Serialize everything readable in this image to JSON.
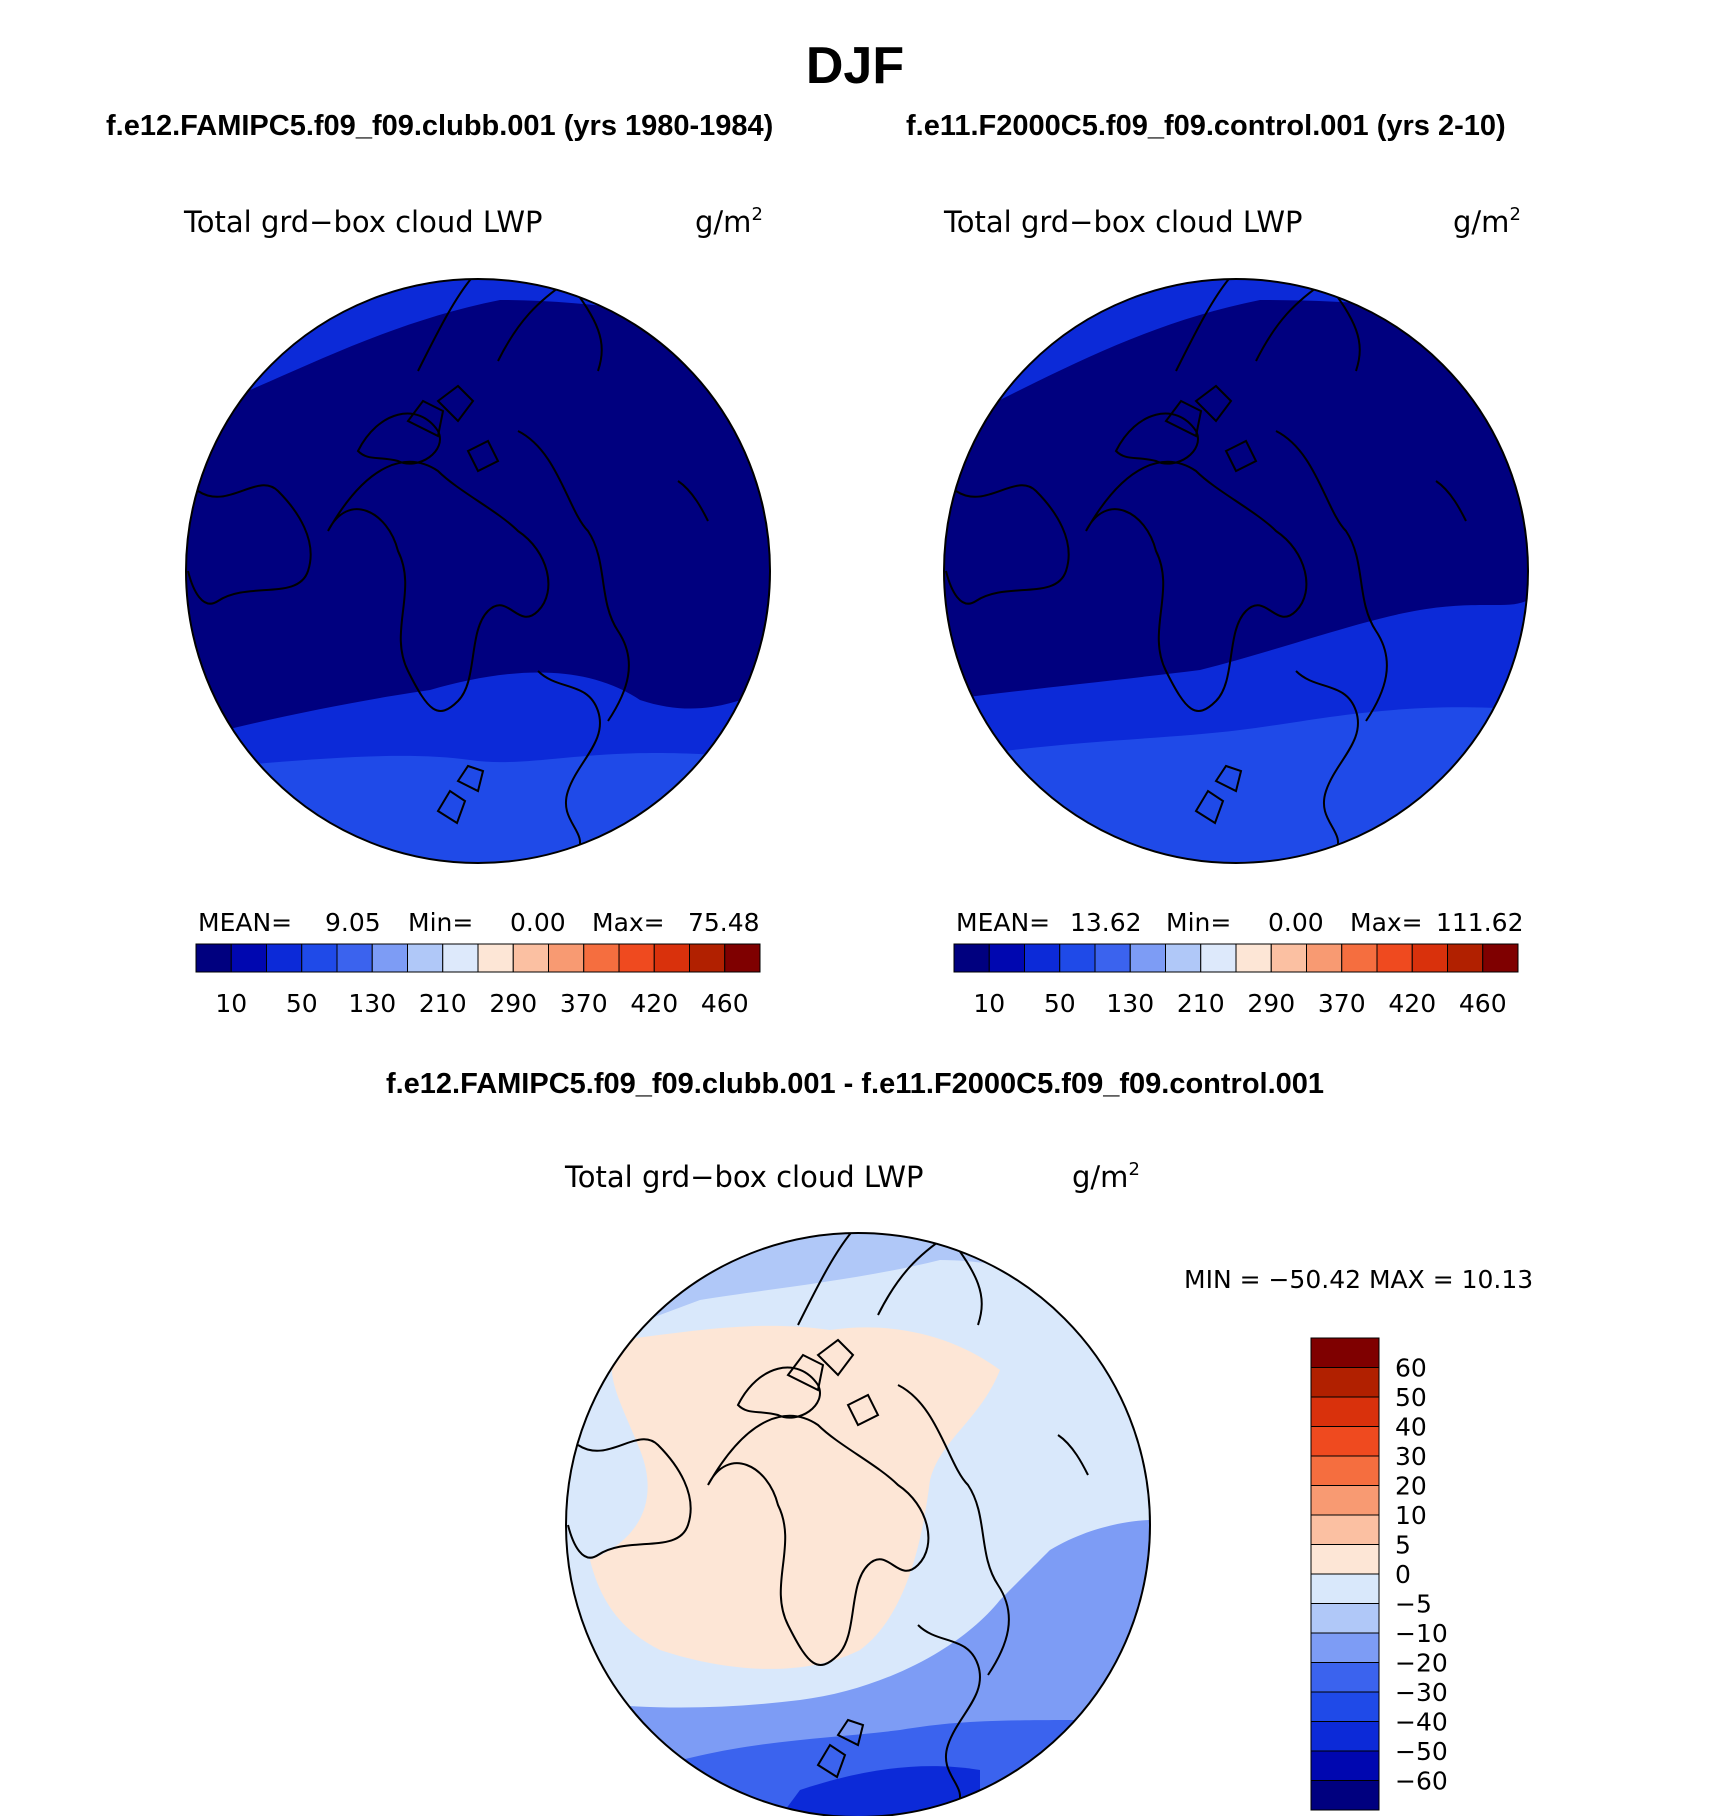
{
  "title": "DJF",
  "panels": {
    "left": {
      "case": "f.e12.FAMIPC5.f09_f09.clubb.001 (yrs 1980-1984)",
      "variable": "Total grd−box cloud LWP",
      "units": "g/m",
      "units_exp": "2",
      "stats": {
        "mean_label": "MEAN=",
        "mean": "9.05",
        "min_label": "Min=",
        "min": "0.00",
        "max_label": "Max=",
        "max": "75.48"
      }
    },
    "right": {
      "case": "f.e11.F2000C5.f09_f09.control.001 (yrs 2-10)",
      "variable": "Total grd−box cloud LWP",
      "units": "g/m",
      "units_exp": "2",
      "stats": {
        "mean_label": "MEAN=",
        "mean": "13.62",
        "min_label": "Min=",
        "min": "0.00",
        "max_label": "Max=",
        "max": "111.62"
      }
    },
    "diff": {
      "case": "f.e12.FAMIPC5.f09_f09.clubb.001 - f.e11.F2000C5.f09_f09.control.001",
      "variable": "Total grd−box cloud LWP",
      "units": "g/m",
      "units_exp": "2",
      "stats_text": "MIN = −50.42 MAX =  10.13"
    }
  },
  "colors": {
    "abs_scale": [
      "#00007f",
      "#0007b0",
      "#0c2ad8",
      "#1f4ae8",
      "#3b63ee",
      "#7d9cf5",
      "#b0c8f8",
      "#dde9fb",
      "#fde6d6",
      "#fbc0a2",
      "#f89a72",
      "#f56e3f",
      "#ef4a1f",
      "#d9310c",
      "#b12000",
      "#7f0000"
    ],
    "diff_scale": [
      "#00007f",
      "#0007b0",
      "#0c2ad8",
      "#1f4ae8",
      "#3b63ee",
      "#7d9cf5",
      "#b0c8f8",
      "#d9e8fb",
      "#fde6d6",
      "#fbc0a2",
      "#f89a72",
      "#f56e3f",
      "#ef4a1f",
      "#d9310c",
      "#b12000",
      "#7f0000"
    ]
  },
  "chart_data": [
    {
      "type": "heatmap",
      "projection": "polar-stereographic",
      "title": "Total grd−box cloud LWP",
      "units": "g/m2",
      "case": "f.e12.FAMIPC5.f09_f09.clubb.001 (yrs 1980-1984)",
      "colorbar_ticks": [
        "10",
        "50",
        "130",
        "210",
        "290",
        "370",
        "420",
        "460"
      ],
      "mean": 9.05,
      "min": 0.0,
      "max": 75.48
    },
    {
      "type": "heatmap",
      "projection": "polar-stereographic",
      "title": "Total grd−box cloud LWP",
      "units": "g/m2",
      "case": "f.e11.F2000C5.f09_f09.control.001 (yrs 2-10)",
      "colorbar_ticks": [
        "10",
        "50",
        "130",
        "210",
        "290",
        "370",
        "420",
        "460"
      ],
      "mean": 13.62,
      "min": 0.0,
      "max": 111.62
    },
    {
      "type": "heatmap",
      "projection": "polar-stereographic",
      "title": "Total grd−box cloud LWP",
      "units": "g/m2",
      "case": "f.e12.FAMIPC5.f09_f09.clubb.001 - f.e11.F2000C5.f09_f09.control.001",
      "colorbar_ticks": [
        "60",
        "50",
        "40",
        "30",
        "20",
        "10",
        "5",
        "0",
        "−5",
        "−10",
        "−20",
        "−30",
        "−40",
        "−50",
        "−60"
      ],
      "min": -50.42,
      "max": 10.13
    }
  ]
}
